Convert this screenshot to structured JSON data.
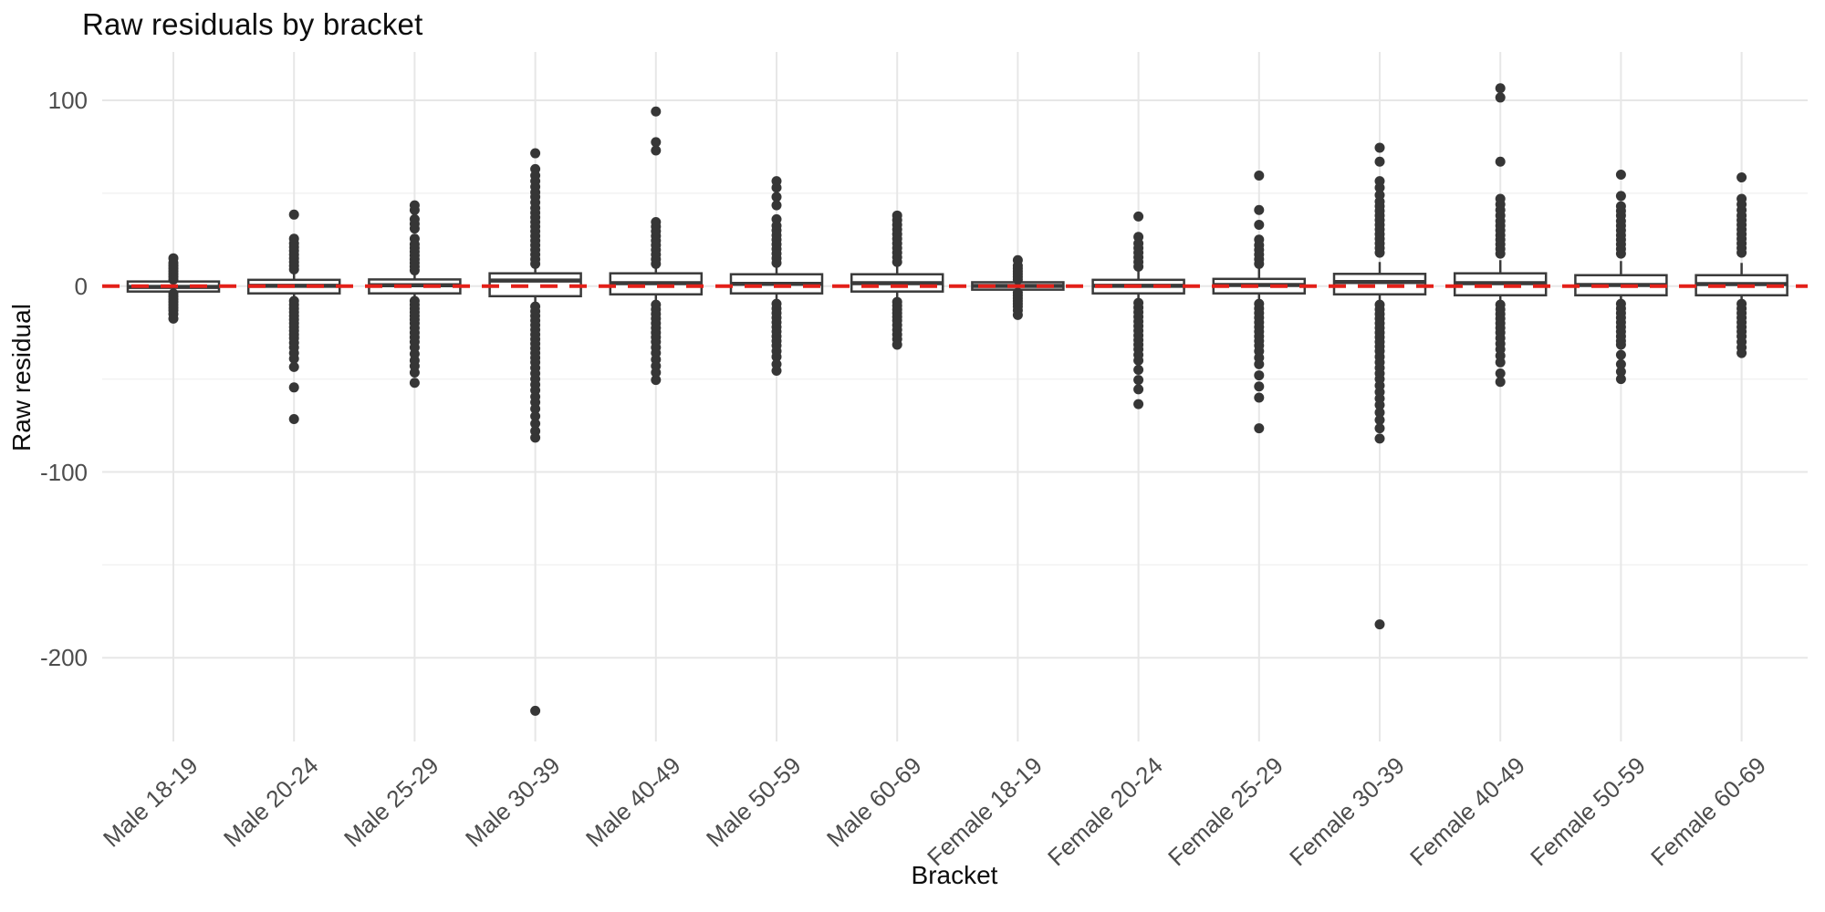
{
  "title": "Raw residuals by bracket",
  "x_axis": {
    "label": "Bracket"
  },
  "y_axis": {
    "label": "Raw residual",
    "tick_labels": [
      "100",
      "0",
      "-100",
      "-200"
    ],
    "tick_values": [
      100,
      0,
      -100,
      -200
    ],
    "minor_tick_values": [
      50,
      -50,
      -150
    ]
  },
  "reference_line": {
    "value": 0,
    "style": "dashed",
    "color": "#e32019"
  },
  "colors": {
    "background": "#ffffff",
    "box_stroke": "#3a3a3a",
    "box_fill": "#ffffff",
    "outlier_dot": "#363636",
    "major_grid": "#e7e7e7",
    "minor_grid": "#f2f2f2",
    "tick_text": "#4d4d4d",
    "title_text": "#0d0d0d"
  },
  "chart_data": {
    "type": "boxplot",
    "title": "Raw residuals by bracket",
    "xlabel": "Bracket",
    "ylabel": "Raw residual",
    "ylim": [
      -245,
      126
    ],
    "grid": true,
    "legend": false,
    "categories": [
      "Male 18-19",
      "Male 20-24",
      "Male 25-29",
      "Male 30-39",
      "Male 40-49",
      "Male 50-59",
      "Male 60-69",
      "Female 18-19",
      "Female 20-24",
      "Female 25-29",
      "Female 30-39",
      "Female 40-49",
      "Female 50-59",
      "Female 60-69"
    ],
    "boxes": [
      {
        "label": "Male 18-19",
        "q1": -2.9,
        "median": -0.4,
        "q3": 2.5,
        "whisker_low": -3.5,
        "whisker_high": 3.2,
        "outliers": [
          3.5,
          5,
          6.5,
          8,
          9.5,
          11,
          12.5,
          15,
          -4,
          -5.5,
          -7,
          -8.5,
          -10,
          -11.5,
          -13,
          -15,
          -17.5
        ]
      },
      {
        "label": "Male 20-24",
        "q1": -3.9,
        "median": 0.2,
        "q3": 3.4,
        "whisker_low": -7.5,
        "whisker_high": 8,
        "outliers": [
          9,
          11,
          13,
          15,
          17,
          19,
          21,
          23,
          25.5,
          38.5,
          -8,
          -10,
          -12,
          -14,
          -16,
          -18,
          -20,
          -22,
          -24,
          -26,
          -28,
          -30.5,
          -33,
          -36,
          -39,
          -43.5,
          -54.5,
          -71.5
        ]
      },
      {
        "label": "Male 25-29",
        "q1": -3.9,
        "median": 0.5,
        "q3": 3.6,
        "whisker_low": -7.5,
        "whisker_high": 8,
        "outliers": [
          8.5,
          10.5,
          12.5,
          14.5,
          16.5,
          18.5,
          20.5,
          22.5,
          25.5,
          31,
          33.5,
          36,
          41,
          43.5,
          -8,
          -10,
          -12,
          -14,
          -16,
          -18,
          -20,
          -22.5,
          -25,
          -27.5,
          -30,
          -33,
          -36.5,
          -40,
          -43,
          -46.5,
          -52
        ]
      },
      {
        "label": "Male 30-39",
        "q1": -5.4,
        "median": 3,
        "q3": 6.9,
        "whisker_low": -10.5,
        "whisker_high": 11.8,
        "outliers": [
          12,
          14.5,
          17,
          19.5,
          22,
          24.5,
          27,
          29.5,
          32,
          34.5,
          37,
          39.5,
          42,
          45,
          48,
          50.5,
          53.5,
          56.5,
          59.5,
          63,
          71.5,
          -11,
          -13.5,
          -16,
          -18.5,
          -21,
          -23.5,
          -26,
          -28.5,
          -31,
          -33.5,
          -36,
          -38.5,
          -41,
          -44,
          -47,
          -50,
          -53,
          -56,
          -59.5,
          -62.5,
          -66,
          -70,
          -74,
          -78,
          -81.5,
          -228.5
        ]
      },
      {
        "label": "Male 40-49",
        "q1": -4.4,
        "median": 1.6,
        "q3": 6.9,
        "whisker_low": -9.8,
        "whisker_high": 11.8,
        "outliers": [
          12,
          14.5,
          17,
          19.5,
          22,
          24.5,
          27,
          29.5,
          32,
          34.5,
          73,
          77.5,
          94,
          -10,
          -12.5,
          -15,
          -17.5,
          -20,
          -22.5,
          -25,
          -27.5,
          -30,
          -33,
          -36,
          -39.5,
          -43,
          -46.5,
          -50.5
        ]
      },
      {
        "label": "Male 50-59",
        "q1": -3.9,
        "median": 1.2,
        "q3": 6.4,
        "whisker_low": -9,
        "whisker_high": 12,
        "outliers": [
          12.5,
          15,
          17.5,
          20,
          22.5,
          25,
          27.5,
          30,
          32.5,
          36,
          43.5,
          48,
          53,
          56.5,
          -9.5,
          -12,
          -14.5,
          -17,
          -19.5,
          -22,
          -24.5,
          -27,
          -29.5,
          -32,
          -35,
          -38,
          -42,
          -45.5
        ]
      },
      {
        "label": "Male 60-69",
        "q1": -2.9,
        "median": 1.6,
        "q3": 6.4,
        "whisker_low": -8.2,
        "whisker_high": 12.2,
        "outliers": [
          13,
          15.5,
          18,
          20.5,
          23,
          25.5,
          28,
          30.5,
          33,
          35.5,
          38,
          -8.5,
          -10.5,
          -12.5,
          -14.5,
          -16.5,
          -18.5,
          -21,
          -23.5,
          -26,
          -28.5,
          -31.5
        ]
      },
      {
        "label": "Female 18-19",
        "q1": -1.9,
        "median": 0.1,
        "q3": 2.1,
        "whisker_low": -3,
        "whisker_high": 3.2,
        "outliers": [
          3.5,
          5,
          6.5,
          8,
          9.5,
          11,
          14,
          -3.5,
          -5,
          -6.5,
          -8,
          -9.5,
          -11,
          -13,
          -15.5
        ]
      },
      {
        "label": "Female 20-24",
        "q1": -3.9,
        "median": 0.2,
        "q3": 3.4,
        "whisker_low": -8,
        "whisker_high": 9.5,
        "outliers": [
          10.5,
          13,
          15.5,
          18,
          20.5,
          23,
          26.5,
          37.5,
          -9,
          -11.5,
          -14,
          -16.5,
          -19,
          -21.5,
          -24,
          -26.5,
          -29,
          -31.5,
          -34,
          -37,
          -40,
          -45,
          -50.5,
          -55.5,
          -63.5
        ]
      },
      {
        "label": "Female 25-29",
        "q1": -3.9,
        "median": 0.6,
        "q3": 3.9,
        "whisker_low": -8.5,
        "whisker_high": 10.5,
        "outliers": [
          12,
          14.5,
          17,
          19.5,
          22,
          25,
          33,
          41,
          59.5,
          -9.5,
          -12,
          -14.5,
          -17,
          -19.5,
          -22,
          -24.5,
          -27,
          -29.5,
          -32,
          -35,
          -38.5,
          -42,
          -48,
          -54,
          -60,
          -76.5
        ]
      },
      {
        "label": "Female 30-39",
        "q1": -4.4,
        "median": 2.2,
        "q3": 6.6,
        "whisker_low": -9.8,
        "whisker_high": 13,
        "outliers": [
          18,
          20.5,
          23,
          25.5,
          28,
          30.5,
          33,
          35.5,
          38,
          40.5,
          43,
          45.5,
          49,
          53,
          56.5,
          67,
          74.5,
          -10,
          -12.5,
          -15,
          -17.5,
          -20,
          -22.5,
          -25,
          -27.5,
          -30,
          -32.5,
          -35,
          -38,
          -41,
          -44,
          -47,
          -50,
          -53.5,
          -57,
          -60.5,
          -64,
          -68,
          -72,
          -76.5,
          -82,
          -182
        ]
      },
      {
        "label": "Female 40-49",
        "q1": -4.9,
        "median": 1.6,
        "q3": 6.9,
        "whisker_low": -10,
        "whisker_high": 14,
        "outliers": [
          17.5,
          20,
          22.5,
          25,
          27.5,
          30,
          32.5,
          35,
          38,
          41,
          44,
          47,
          67,
          101.5,
          106.5,
          -10,
          -12.5,
          -15,
          -17.5,
          -20,
          -22.5,
          -25,
          -28,
          -31,
          -34,
          -37.5,
          -41,
          -47,
          -51.5
        ]
      },
      {
        "label": "Female 50-59",
        "q1": -4.9,
        "median": 0.6,
        "q3": 5.9,
        "whisker_low": -10,
        "whisker_high": 13.5,
        "outliers": [
          17.5,
          20,
          22.5,
          25,
          27.5,
          30,
          32.5,
          35,
          38,
          40.5,
          43,
          48.5,
          60,
          -9.5,
          -12,
          -14.5,
          -17,
          -19.5,
          -22,
          -24.5,
          -27,
          -29.5,
          -31.5,
          -37,
          -42,
          -46,
          -50
        ]
      },
      {
        "label": "Female 60-69",
        "q1": -4.9,
        "median": 1.1,
        "q3": 5.9,
        "whisker_low": -9.8,
        "whisker_high": 12.5,
        "outliers": [
          18,
          20.5,
          23,
          25.5,
          28,
          30.5,
          33,
          35.5,
          38,
          41,
          44,
          47,
          58.5,
          -9.5,
          -12,
          -14.5,
          -17,
          -19.5,
          -22,
          -24.5,
          -27,
          -30,
          -33,
          -36
        ]
      }
    ]
  }
}
